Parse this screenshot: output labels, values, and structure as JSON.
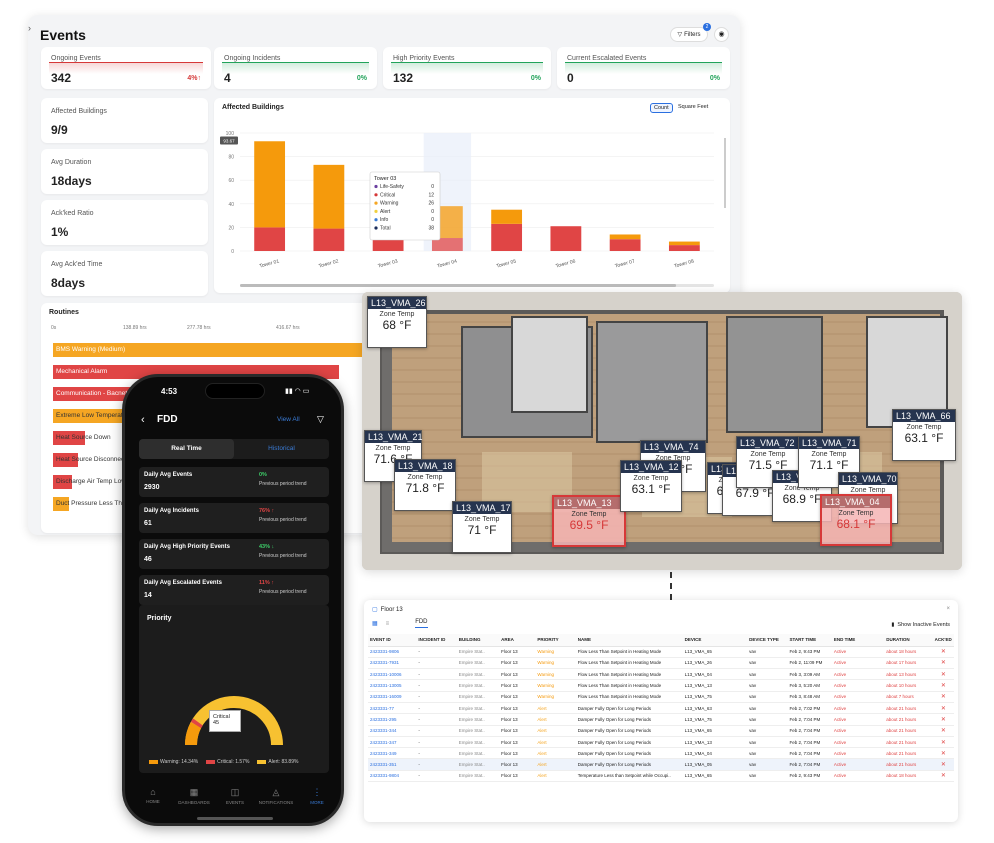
{
  "dashboard": {
    "title": "Events",
    "filters_label": "Filters",
    "filters_count": "2",
    "kpis": [
      {
        "label": "Ongoing Events",
        "value": "342",
        "change": "4%↑",
        "color": "#d63838"
      },
      {
        "label": "Ongoing Incidents",
        "value": "4",
        "change": "0%",
        "color": "#22a35a"
      },
      {
        "label": "High Priority Events",
        "value": "132",
        "change": "0%",
        "color": "#22a35a"
      },
      {
        "label": "Current Escalated Events",
        "value": "0",
        "change": "0%",
        "color": "#22a35a"
      }
    ],
    "side_stats": [
      {
        "label": "Affected Buildings",
        "value": "9/9"
      },
      {
        "label": "Avg Duration",
        "value": "18days"
      },
      {
        "label": "Ack'ked Ratio",
        "value": "1%"
      },
      {
        "label": "Avg Ack'ed Time",
        "value": "8days"
      }
    ],
    "affected_buildings": {
      "title": "Affected Buildings",
      "toggle": [
        "Count",
        "Square Feet"
      ],
      "tooltip": {
        "title": "Tower 03",
        "rows": [
          {
            "label": "Life-Safety",
            "value": "0",
            "color": "#6b3fa0"
          },
          {
            "label": "Critical",
            "value": "12",
            "color": "#d63838"
          },
          {
            "label": "Warning",
            "value": "26",
            "color": "#f5a623"
          },
          {
            "label": "Alert",
            "value": "0",
            "color": "#f0d040"
          },
          {
            "label": "Info",
            "value": "0",
            "color": "#3a7bd5"
          },
          {
            "label": "Total",
            "value": "38",
            "color": "#1a2c5a"
          }
        ]
      },
      "y_marker": "93.67"
    },
    "routines": {
      "title": "Routines",
      "axis": [
        "0s",
        "138.89 hrs",
        "277.78 hrs",
        "416.67 hrs"
      ],
      "bars": [
        {
          "label": "BMS Warning (Medium)",
          "value": 1.0,
          "color": "#f5a623"
        },
        {
          "label": "Mechanical Alarm",
          "value": 0.9,
          "color": "#e04545"
        },
        {
          "label": "Communication - Bacnet Devices",
          "value": 0.78,
          "color": "#e04545"
        },
        {
          "label": "Extreme Low Temperature",
          "value": 0.25,
          "color": "#f5a623"
        },
        {
          "label": "Heat Source Down",
          "value": 0.1,
          "color": "#e04545"
        },
        {
          "label": "Heat Source Disconnected",
          "value": 0.08,
          "color": "#e04545"
        },
        {
          "label": "Discharge Air Temp Low",
          "value": 0.06,
          "color": "#e04545"
        },
        {
          "label": "Duct Pressure Less Than",
          "value": 0.05,
          "color": "#f5a623"
        }
      ]
    }
  },
  "chart_data": {
    "type": "bar",
    "title": "Affected Buildings",
    "categories": [
      "Tower 01",
      "Tower 02",
      "Tower 03",
      "Tower 04",
      "Tower 05",
      "Tower 06",
      "Tower 07",
      "Tower 08"
    ],
    "series": [
      {
        "name": "Critical",
        "values": [
          20,
          19,
          12,
          11,
          23,
          21,
          10,
          5
        ],
        "color": "#e04545"
      },
      {
        "name": "Warning",
        "values": [
          73,
          54,
          26,
          27,
          12,
          0,
          4,
          3
        ],
        "color": "#f59a0c"
      }
    ],
    "ylim": [
      0,
      100
    ],
    "yticks": [
      0,
      20,
      40,
      60,
      80,
      100
    ]
  },
  "floor_plan": {
    "zone_label": "Zone Temp",
    "tags": [
      {
        "name": "L13_VMA_26",
        "temp": "68 °F"
      },
      {
        "name": "L13_VMA_21",
        "temp": "71.6 °F"
      },
      {
        "name": "L13_VMA_18",
        "temp": "71.8 °F"
      },
      {
        "name": "L13_VMA_17",
        "temp": "71 °F"
      },
      {
        "name": "L13_VMA_13",
        "temp": "69.5 °F",
        "hot": true
      },
      {
        "name": "L13_VMA_74",
        "temp": "69.6 °F"
      },
      {
        "name": "L13_VMA_12",
        "temp": "63.1 °F"
      },
      {
        "name": "L13_VMA_14",
        "temp": "65.4 °F"
      },
      {
        "name": "L13_VMA_07",
        "temp": "67.9 °F"
      },
      {
        "name": "L13_VMA_72",
        "temp": "71.5 °F"
      },
      {
        "name": "L13_VMA_05",
        "temp": "68.9 °F"
      },
      {
        "name": "L13_VMA_71",
        "temp": "71.1 °F"
      },
      {
        "name": "L13_VMA_70",
        "temp": "68.4 °F"
      },
      {
        "name": "L13_VMA_04",
        "temp": "68.1 °F",
        "hot": true
      },
      {
        "name": "L13_VMA_66",
        "temp": "63.1 °F"
      }
    ]
  },
  "events_table": {
    "breadcrumb": "Floor 13",
    "tab": "FDD",
    "show_inactive": "Show Inactive Events",
    "columns": [
      "EVENT ID",
      "INCIDENT ID",
      "BUILDING",
      "AREA",
      "PRIORITY",
      "NAME",
      "DEVICE",
      "DEVICE TYPE",
      "START TIME",
      "END TIME",
      "DURATION",
      "ACK'ED"
    ],
    "rows": [
      [
        "2423331-9806",
        "-",
        "Empire Stat..",
        "Floor 13",
        "Warning",
        "Flow Less Than Setpoint in Heating Mode",
        "L13_VMA_65",
        "vav",
        "Feb 2, 9:43 PM",
        "Active",
        "about 18 hours",
        "✕"
      ],
      [
        "2423331-7931",
        "-",
        "Empire Stat..",
        "Floor 13",
        "Warning",
        "Flow Less Than Setpoint in Heating Mode",
        "L13_VMA_26",
        "vav",
        "Feb 2, 11:09 PM",
        "Active",
        "about 17 hours",
        "✕"
      ],
      [
        "2423331-10006",
        "-",
        "Empire Stat..",
        "Floor 13",
        "Warning",
        "Flow Less Than Setpoint in Heating Mode",
        "L13_VMA_04",
        "vav",
        "Feb 3, 3:09 AM",
        "Active",
        "about 13 hours",
        "✕"
      ],
      [
        "2423331-13005",
        "-",
        "Empire Stat..",
        "Floor 13",
        "Warning",
        "Flow Less Than Setpoint in Heating Mode",
        "L13_VMA_13",
        "vav",
        "Feb 3, 5:20 AM",
        "Active",
        "about 10 hours",
        "✕"
      ],
      [
        "2423331-16009",
        "-",
        "Empire Stat..",
        "Floor 13",
        "Warning",
        "Flow Less Than Setpoint in Heating Mode",
        "L13_VMA_75",
        "vav",
        "Feb 3, 8:48 AM",
        "Active",
        "about 7 hours",
        "✕"
      ],
      [
        "2423331-77",
        "-",
        "Empire Stat..",
        "Floor 13",
        "Alert",
        "Damper Fully Open for Long Periods",
        "L13_VMA_63",
        "vav",
        "Feb 2, 7:02 PM",
        "Active",
        "about 21 hours",
        "✕"
      ],
      [
        "2423331-295",
        "-",
        "Empire Stat..",
        "Floor 13",
        "Alert",
        "Damper Fully Open for Long Periods",
        "L13_VMA_75",
        "vav",
        "Feb 2, 7:04 PM",
        "Active",
        "about 21 hours",
        "✕"
      ],
      [
        "2423331-344",
        "-",
        "Empire Stat..",
        "Floor 13",
        "Alert",
        "Damper Fully Open for Long Periods",
        "L13_VMA_65",
        "vav",
        "Feb 2, 7:04 PM",
        "Active",
        "about 21 hours",
        "✕"
      ],
      [
        "2423331-347",
        "-",
        "Empire Stat..",
        "Floor 13",
        "Alert",
        "Damper Fully Open for Long Periods",
        "L13_VMA_13",
        "vav",
        "Feb 2, 7:04 PM",
        "Active",
        "about 21 hours",
        "✕"
      ],
      [
        "2423331-349",
        "-",
        "Empire Stat..",
        "Floor 13",
        "Alert",
        "Damper Fully Open for Long Periods",
        "L13_VMA_04",
        "vav",
        "Feb 2, 7:04 PM",
        "Active",
        "about 21 hours",
        "✕"
      ],
      [
        "2423331-351",
        "-",
        "Empire Stat..",
        "Floor 13",
        "Alert",
        "Damper Fully Open for Long Periods",
        "L13_VMA_05",
        "vav",
        "Feb 2, 7:04 PM",
        "Active",
        "about 21 hours",
        "✕"
      ],
      [
        "2423331-9804",
        "-",
        "Empire Stat..",
        "Floor 13",
        "Alert",
        "Temperature Less than Setpoint while Occupi..",
        "L13_VMA_65",
        "vav",
        "Feb 2, 9:43 PM",
        "Active",
        "about 18 hours",
        "✕"
      ]
    ]
  },
  "phone": {
    "time": "4:53",
    "title": "FDD",
    "view_all": "View All",
    "tabs": [
      "Real Time",
      "Historical"
    ],
    "cards": [
      {
        "label": "Daily Avg Events",
        "value": "2930",
        "pct": "0%",
        "pct_color": "#3ecf6a",
        "trend": "Previous period trend"
      },
      {
        "label": "Daily Avg Incidents",
        "value": "61",
        "pct": "76% ↑",
        "pct_color": "#e04545",
        "trend": "Previous period trend"
      },
      {
        "label": "Daily Avg High Priority Events",
        "value": "46",
        "pct": "43% ↓",
        "pct_color": "#3ecf6a",
        "trend": "Previous period trend"
      },
      {
        "label": "Daily Avg Escalated Events",
        "value": "14",
        "pct": "11% ↑",
        "pct_color": "#e04545",
        "trend": "Previous period trend"
      }
    ],
    "priority": {
      "title": "Priority",
      "callout_label": "Critical",
      "callout_value": "45",
      "legend": [
        {
          "label": "Warning: 14.34%",
          "value": 14.34,
          "color": "#f59a0c"
        },
        {
          "label": "Critical: 1.57%",
          "value": 1.57,
          "color": "#e04545"
        },
        {
          "label": "Alert: 83.89%",
          "value": 83.89,
          "color": "#f7c131"
        }
      ]
    },
    "nav": [
      "HOME",
      "DASHBOARDS",
      "EVENTS",
      "NOTIFICATIONS",
      "MORE"
    ]
  }
}
